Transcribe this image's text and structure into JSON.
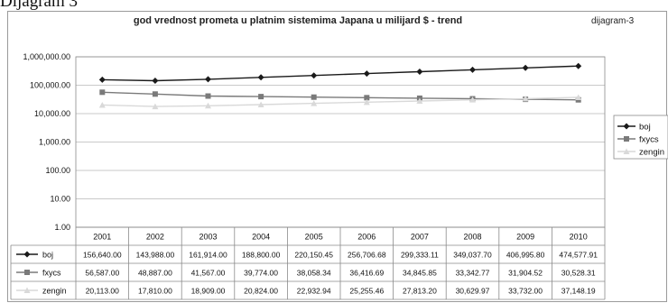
{
  "heading": "Dijagram 3",
  "chart_data": {
    "type": "line",
    "title": "god vrednost prometa u platnim sistemima Japana u milijard $ - trend",
    "tag": "dijagram-3",
    "yscale": "log",
    "ylim": [
      1,
      1000000
    ],
    "grid": true,
    "legend_position": "right",
    "y_ticks": [
      "1,000,000.00",
      "100,000.00",
      "10,000.00",
      "1,000.00",
      "100.00",
      "10.00",
      "1.00"
    ],
    "categories": [
      "2001",
      "2002",
      "2003",
      "2004",
      "2005",
      "2006",
      "2007",
      "2008",
      "2009",
      "2010"
    ],
    "series": [
      {
        "name": "boj",
        "color": "#1a1a1a",
        "marker": "diamond",
        "values": [
          156640.0,
          143988.0,
          161914.0,
          188800.0,
          220150.45,
          256706.68,
          299333.11,
          349037.7,
          406995.8,
          474577.91
        ],
        "labels": [
          "156,640.00",
          "143,988.00",
          "161,914.00",
          "188,800.00",
          "220,150.45",
          "256,706.68",
          "299,333.11",
          "349,037.70",
          "406,995.80",
          "474,577.91"
        ]
      },
      {
        "name": "fxycs",
        "color": "#7a7a7a",
        "marker": "square",
        "values": [
          56587.0,
          48887.0,
          41567.0,
          39774.0,
          38058.34,
          36416.69,
          34845.85,
          33342.77,
          31904.52,
          30528.31
        ],
        "labels": [
          "56,587.00",
          "48,887.00",
          "41,567.00",
          "39,774.00",
          "38,058.34",
          "36,416.69",
          "34,845.85",
          "33,342.77",
          "31,904.52",
          "30,528.31"
        ]
      },
      {
        "name": "zengin",
        "color": "#d9d9d9",
        "marker": "triangle",
        "values": [
          20113.0,
          17810.0,
          18909.0,
          20824.0,
          22932.94,
          25255.46,
          27813.2,
          30629.97,
          33732.0,
          37148.19
        ],
        "labels": [
          "20,113.00",
          "17,810.00",
          "18,909.00",
          "20,824.00",
          "22,932.94",
          "25,255.46",
          "27,813.20",
          "30,629.97",
          "33,732.00",
          "37,148.19"
        ]
      }
    ]
  }
}
